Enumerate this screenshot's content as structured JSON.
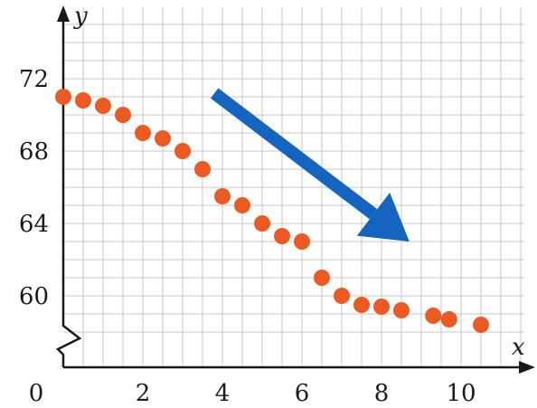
{
  "chart_data": {
    "type": "scatter",
    "title": "",
    "xlabel": "x",
    "ylabel": "y",
    "xlim": [
      0,
      12
    ],
    "ylim": [
      57,
      75
    ],
    "y_axis_break": true,
    "grid": true,
    "x_ticks": [
      {
        "value": 0,
        "label": "0"
      },
      {
        "value": 2,
        "label": "2"
      },
      {
        "value": 4,
        "label": "4"
      },
      {
        "value": 6,
        "label": "6"
      },
      {
        "value": 8,
        "label": "8"
      },
      {
        "value": 10,
        "label": "10"
      }
    ],
    "y_ticks": [
      {
        "value": 60,
        "label": "60"
      },
      {
        "value": 64,
        "label": "64"
      },
      {
        "value": 68,
        "label": "68"
      },
      {
        "value": 72,
        "label": "72"
      }
    ],
    "points": [
      {
        "x": 0.0,
        "y": 71.0
      },
      {
        "x": 0.5,
        "y": 70.8
      },
      {
        "x": 1.0,
        "y": 70.5
      },
      {
        "x": 1.5,
        "y": 70.0
      },
      {
        "x": 2.0,
        "y": 69.0
      },
      {
        "x": 2.5,
        "y": 68.7
      },
      {
        "x": 3.0,
        "y": 68.0
      },
      {
        "x": 3.5,
        "y": 67.0
      },
      {
        "x": 4.0,
        "y": 65.5
      },
      {
        "x": 4.5,
        "y": 65.0
      },
      {
        "x": 5.0,
        "y": 64.0
      },
      {
        "x": 5.5,
        "y": 63.3
      },
      {
        "x": 6.0,
        "y": 63.0
      },
      {
        "x": 6.5,
        "y": 61.0
      },
      {
        "x": 7.0,
        "y": 60.0
      },
      {
        "x": 7.5,
        "y": 59.5
      },
      {
        "x": 8.0,
        "y": 59.4
      },
      {
        "x": 8.5,
        "y": 59.2
      },
      {
        "x": 9.3,
        "y": 58.9
      },
      {
        "x": 9.7,
        "y": 58.7
      },
      {
        "x": 10.5,
        "y": 58.4
      }
    ],
    "trend_arrow": {
      "from": {
        "x": 3.8,
        "y": 71.2
      },
      "to": {
        "x": 8.7,
        "y": 63.0
      },
      "color": "#1565c0",
      "direction": "decreasing"
    },
    "colors": {
      "points": "#ec5a24",
      "arrow": "#1565c0",
      "grid": "#c7c7c7",
      "axis": "#1a1a1a"
    }
  }
}
